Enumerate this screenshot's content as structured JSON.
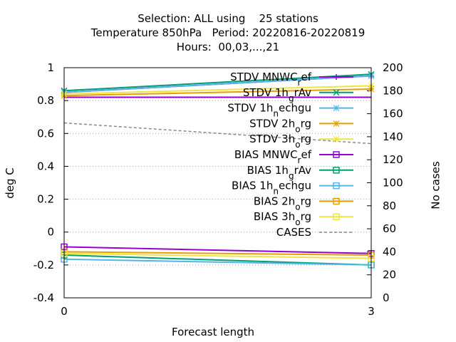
{
  "chart_data": {
    "type": "line",
    "title": [
      "Selection: ALL using    25 stations",
      "Temperature 850hPa   Period: 20220816-20220819",
      "Hours:  00,03,...,21"
    ],
    "xlabel": "Forecast length",
    "ylabel": "deg C",
    "y2label": "No cases",
    "x": [
      0,
      3
    ],
    "xticks": [
      "0",
      "3"
    ],
    "ylim": [
      -0.4,
      1
    ],
    "yticks": [
      "-0.4",
      "-0.2",
      "0",
      "0.2",
      "0.4",
      "0.6",
      "0.8",
      "1"
    ],
    "y2lim": [
      0,
      200
    ],
    "y2ticks": [
      "0",
      "20",
      "40",
      "60",
      "80",
      "100",
      "120",
      "140",
      "160",
      "180",
      "200"
    ],
    "grid": true,
    "legend_position": "top-right",
    "series": [
      {
        "name": "STDV MNWC",
        "sub": "ref",
        "axis": "y1",
        "marker": "plus",
        "dash": false,
        "color": "#9400d3",
        "values": [
          0.85,
          0.95
        ]
      },
      {
        "name": "STDV 1h",
        "sub": "grAv",
        "axis": "y1",
        "marker": "cross",
        "dash": false,
        "color": "#009e73",
        "values": [
          0.86,
          0.96
        ]
      },
      {
        "name": "STDV 1h",
        "sub": "nechgu",
        "axis": "y1",
        "marker": "star",
        "dash": false,
        "color": "#56b4e9",
        "values": [
          0.85,
          0.95
        ]
      },
      {
        "name": "STDV 2h",
        "sub": "org",
        "axis": "y1",
        "marker": "star",
        "dash": false,
        "color": "#e69f00",
        "values": [
          0.83,
          0.87
        ]
      },
      {
        "name": "STDV 3h",
        "sub": "org",
        "axis": "y1",
        "marker": "star",
        "dash": false,
        "color": "#f0e442",
        "values": [
          0.84,
          0.89
        ]
      },
      {
        "name": "BIAS MNWC",
        "sub": "ref",
        "axis": "y1",
        "marker": "square",
        "dash": false,
        "color": "#9400d3",
        "values": [
          -0.09,
          -0.13
        ]
      },
      {
        "name": "BIAS 1h",
        "sub": "grAv",
        "axis": "y1",
        "marker": "square",
        "dash": false,
        "color": "#009e73",
        "values": [
          -0.14,
          -0.2
        ]
      },
      {
        "name": "BIAS 1h",
        "sub": "nechgu",
        "axis": "y1",
        "marker": "square",
        "dash": false,
        "color": "#56b4e9",
        "values": [
          -0.165,
          -0.2
        ]
      },
      {
        "name": "BIAS 2h",
        "sub": "org",
        "axis": "y1",
        "marker": "square",
        "dash": false,
        "color": "#e69f00",
        "values": [
          -0.12,
          -0.14
        ]
      },
      {
        "name": "BIAS 3h",
        "sub": "org",
        "axis": "y1",
        "marker": "square",
        "dash": false,
        "color": "#f0e442",
        "values": [
          -0.13,
          -0.16
        ]
      },
      {
        "name": "CASES",
        "sub": "",
        "axis": "y2",
        "marker": "none",
        "dash": true,
        "color": "#888888",
        "values": [
          152,
          134
        ]
      }
    ],
    "flat_line": {
      "axis": "y1",
      "value": 0.82,
      "color": "#9400d3"
    }
  }
}
